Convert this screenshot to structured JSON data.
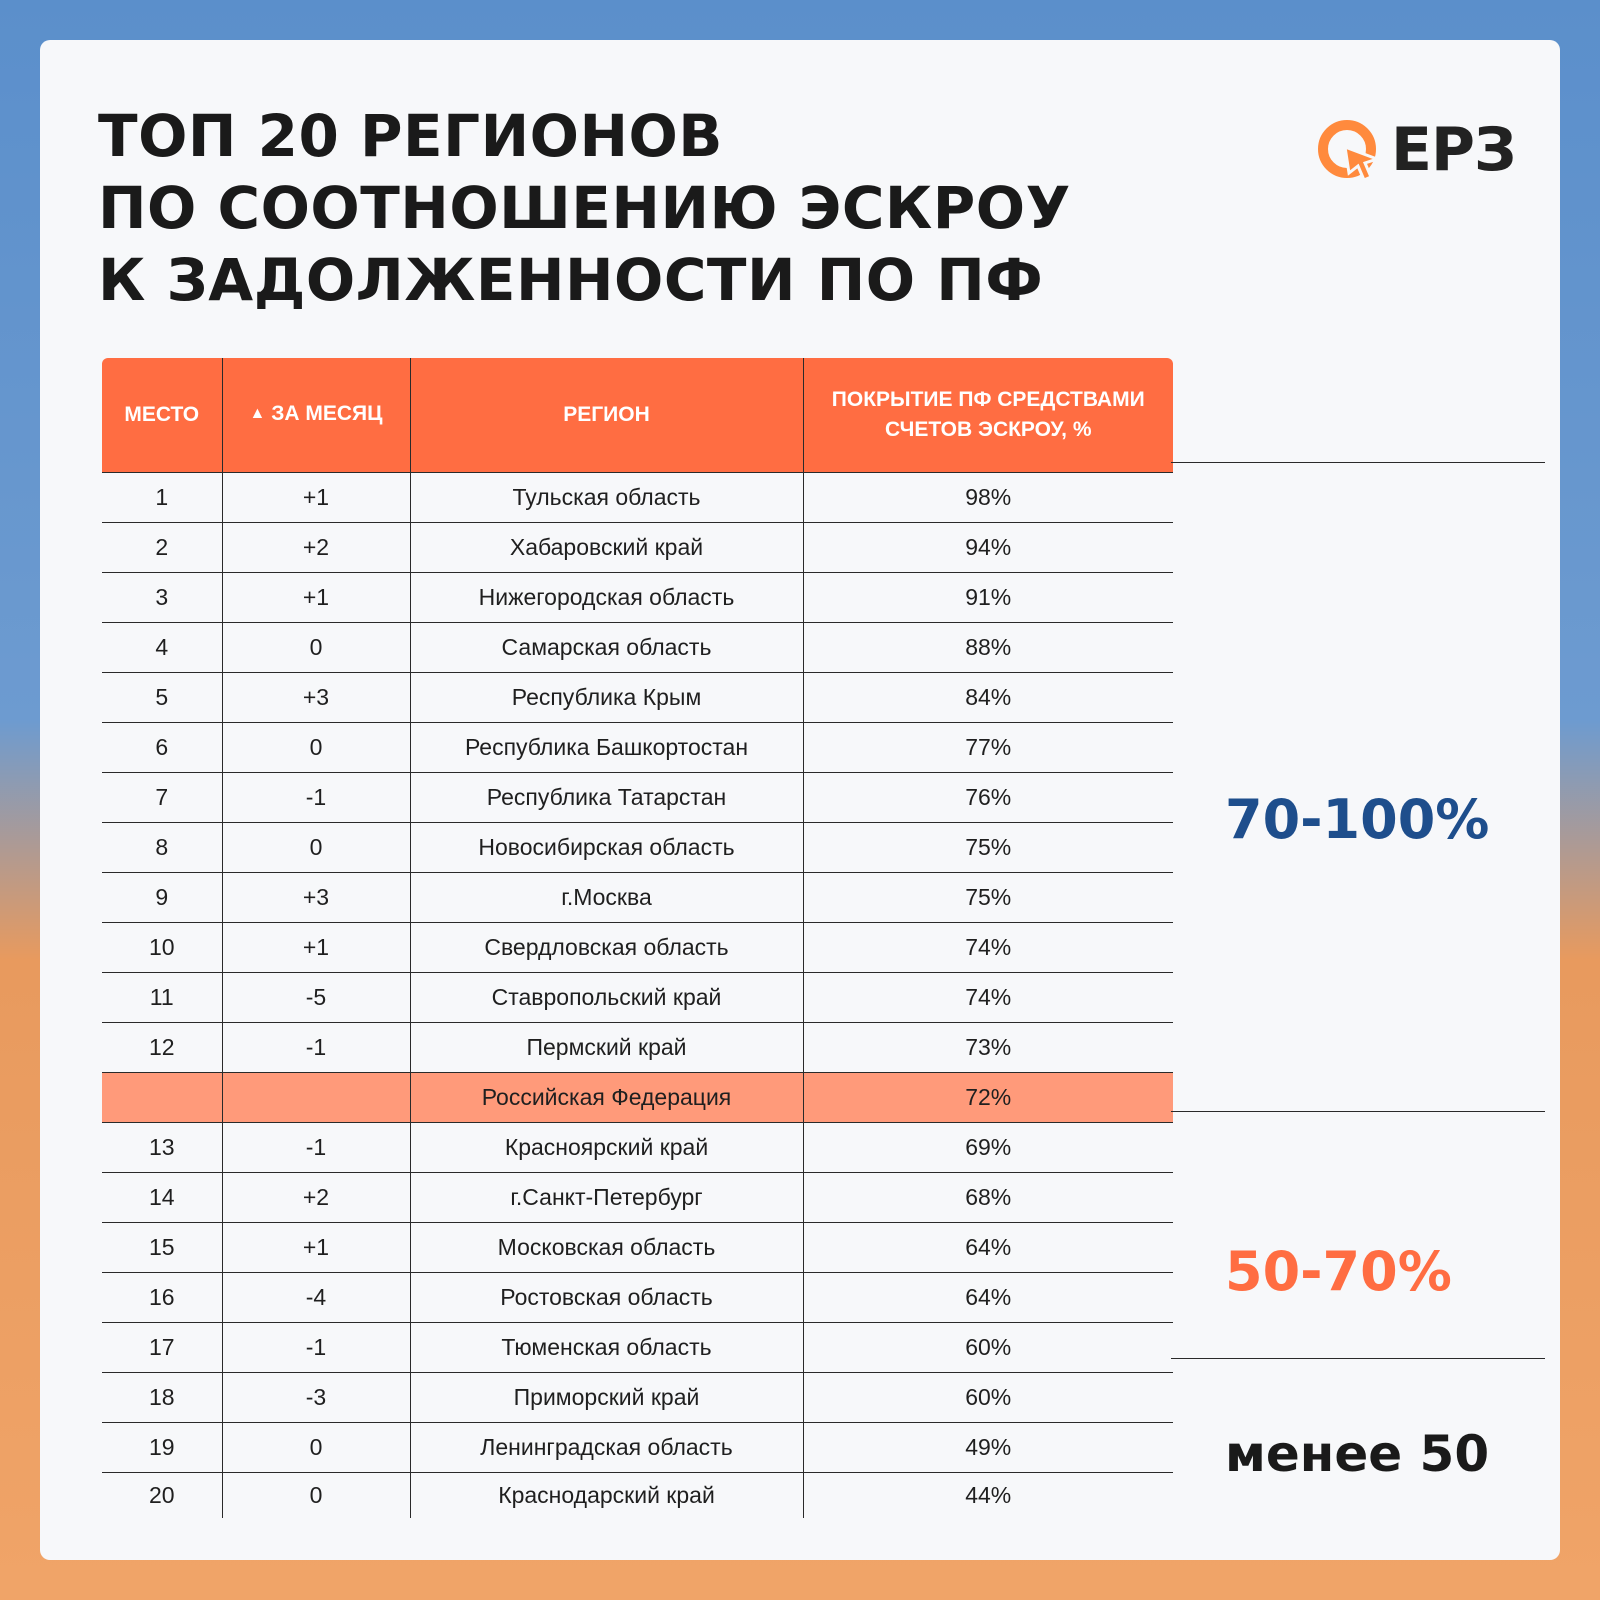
{
  "title": {
    "line1": "ТОП 20 РЕГИОНОВ",
    "line2": "ПО СООТНОШЕНИЮ ЭСКРОУ",
    "line3": "К ЗАДОЛЖЕННОСТИ ПО ПФ"
  },
  "logo": {
    "text": "ЕРЗ",
    "icon": "q-arrow-logo-icon",
    "color": "#ff8a3d"
  },
  "headers": {
    "place": "МЕСТО",
    "delta_icon": "▲",
    "delta": "ЗА МЕСЯЦ",
    "region": "РЕГИОН",
    "coverage": "ПОКРЫТИЕ ПФ СРЕДСТВАМИ СЧЕТОВ ЭСКРОУ, %"
  },
  "rows": [
    {
      "place": "1",
      "delta": "+1",
      "region": "Тульская область",
      "value": "98%"
    },
    {
      "place": "2",
      "delta": "+2",
      "region": "Хабаровский край",
      "value": "94%"
    },
    {
      "place": "3",
      "delta": "+1",
      "region": "Нижегородская область",
      "value": "91%"
    },
    {
      "place": "4",
      "delta": "0",
      "region": "Самарская область",
      "value": "88%"
    },
    {
      "place": "5",
      "delta": "+3",
      "region": "Республика Крым",
      "value": "84%"
    },
    {
      "place": "6",
      "delta": "0",
      "region": "Республика Башкортостан",
      "value": "77%"
    },
    {
      "place": "7",
      "delta": "-1",
      "region": "Республика Татарстан",
      "value": "76%"
    },
    {
      "place": "8",
      "delta": "0",
      "region": "Новосибирская область",
      "value": "75%"
    },
    {
      "place": "9",
      "delta": "+3",
      "region": "г.Москва",
      "value": "75%"
    },
    {
      "place": "10",
      "delta": "+1",
      "region": "Свердловская область",
      "value": "74%"
    },
    {
      "place": "11",
      "delta": "-5",
      "region": "Ставропольский край",
      "value": "74%"
    },
    {
      "place": "12",
      "delta": "-1",
      "region": "Пермский край",
      "value": "73%"
    },
    {
      "place": "",
      "delta": "",
      "region": "Российская Федерация",
      "value": "72%",
      "highlight": true
    },
    {
      "place": "13",
      "delta": "-1",
      "region": "Красноярский край",
      "value": "69%"
    },
    {
      "place": "14",
      "delta": "+2",
      "region": "г.Санкт-Петербург",
      "value": "68%"
    },
    {
      "place": "15",
      "delta": "+1",
      "region": "Московская область",
      "value": "64%"
    },
    {
      "place": "16",
      "delta": "-4",
      "region": "Ростовская область",
      "value": "64%"
    },
    {
      "place": "17",
      "delta": "-1",
      "region": "Тюменская область",
      "value": "60%"
    },
    {
      "place": "18",
      "delta": "-3",
      "region": "Приморский край",
      "value": "60%"
    },
    {
      "place": "19",
      "delta": "0",
      "region": "Ленинградская область",
      "value": "49%"
    },
    {
      "place": "20",
      "delta": "0",
      "region": "Краснодарский край",
      "value": "44%"
    }
  ],
  "bands": {
    "high": "70-100%",
    "mid": "50-70%",
    "low": "менее 50"
  },
  "colors": {
    "header": "#ff6d42",
    "highlight_row": "#ff9a7a",
    "positive": "#3db63d",
    "negative": "#e8534a",
    "band_high": "#1e4e8c",
    "band_mid": "#ff6d42"
  }
}
